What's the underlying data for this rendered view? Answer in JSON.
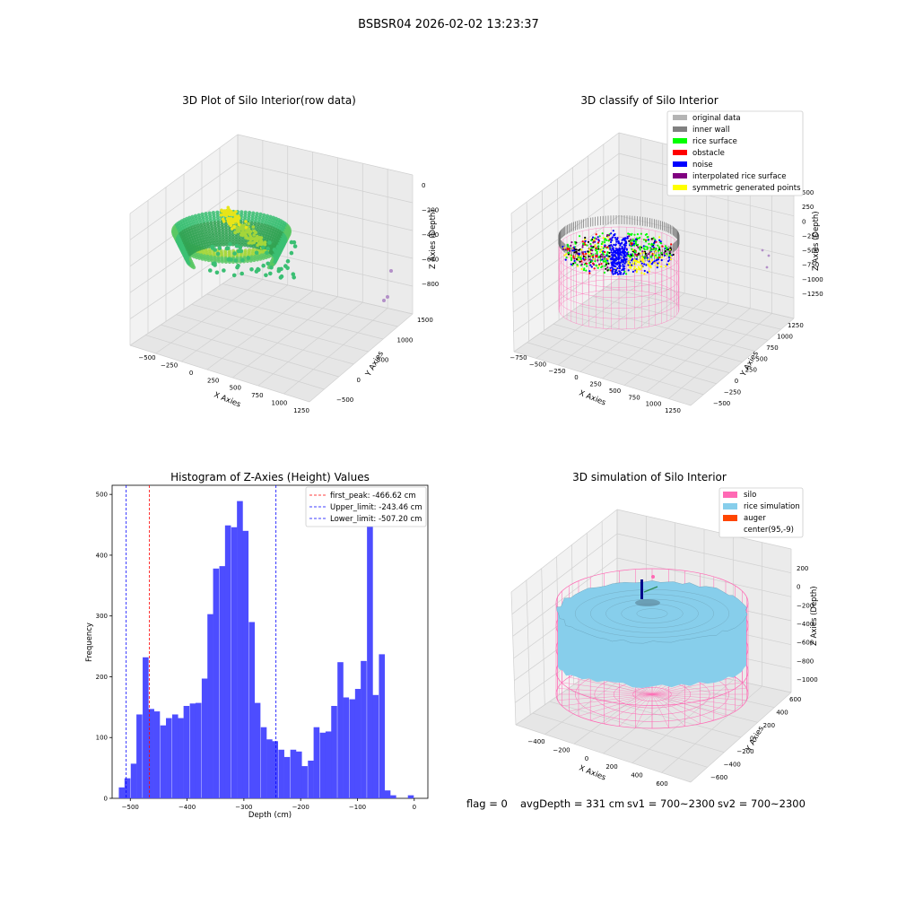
{
  "page_title": "BSBSR04 2026-02-02 13:23:37",
  "status": {
    "flag": "flag = 0",
    "avg_depth": "avgDepth = 331 cm",
    "sv1": "sv1 = 700~2300",
    "sv2": "sv2 = 700~2300"
  },
  "chart_data": [
    {
      "type": "scatter",
      "title": "3D Plot of Silo Interior(row data)",
      "xlabel": "X Axies",
      "ylabel": "Y Axies",
      "zlabel": "Z Axies (Depth)",
      "x_ticks": [
        "−500",
        "−250",
        "0",
        "250",
        "500",
        "750",
        "1000",
        "1250"
      ],
      "y_ticks": [
        "−500",
        "0",
        "500",
        "1000",
        "1500"
      ],
      "z_ticks": [
        "0",
        "−200",
        "−400",
        "−600",
        "−800"
      ],
      "colormap": [
        "#31a354",
        "#3bbf73",
        "#5ac864",
        "#a4d63a",
        "#e8e419"
      ]
    },
    {
      "type": "scatter",
      "title": "3D classify of Silo Interior",
      "xlabel": "X Axies",
      "ylabel": "Y Axies",
      "zlabel": "Z Axies (Depth)",
      "x_ticks": [
        "−750",
        "−500",
        "−250",
        "0",
        "250",
        "500",
        "750",
        "1000",
        "1250"
      ],
      "y_ticks": [
        "−500",
        "−250",
        "0",
        "250",
        "500",
        "750",
        "1000",
        "1250"
      ],
      "z_ticks": [
        "500",
        "250",
        "0",
        "−250",
        "−500",
        "−750",
        "−1000",
        "−1250"
      ],
      "legend": [
        {
          "label": "original data",
          "color": "#b4b4b4"
        },
        {
          "label": "inner wall",
          "color": "#808080"
        },
        {
          "label": "rice surface",
          "color": "#00ff00"
        },
        {
          "label": "obstacle",
          "color": "#ff0000"
        },
        {
          "label": "noise",
          "color": "#0000ff"
        },
        {
          "label": "interpolated rice surface",
          "color": "#800080"
        },
        {
          "label": "symmetric generated points",
          "color": "#ffff00"
        }
      ],
      "wall_color": "#ff69b4"
    },
    {
      "type": "bar",
      "title": "Histogram of Z-Axies (Height) Values",
      "xlabel": "Depth (cm)",
      "ylabel": "Frequency",
      "xlim": [
        -532,
        24
      ],
      "ylim": [
        0,
        515
      ],
      "x_ticks": [
        -500,
        -400,
        -300,
        -200,
        -100,
        0
      ],
      "x_tick_labels": [
        "−500",
        "−400",
        "−300",
        "−200",
        "−100",
        "0"
      ],
      "y_ticks": [
        0,
        100,
        200,
        300,
        400,
        500
      ],
      "bin_width": 10.4,
      "bins": [
        {
          "x": -515,
          "v": 18
        },
        {
          "x": -505,
          "v": 33
        },
        {
          "x": -494,
          "v": 57
        },
        {
          "x": -484,
          "v": 138
        },
        {
          "x": -473,
          "v": 232
        },
        {
          "x": -463,
          "v": 147
        },
        {
          "x": -453,
          "v": 143
        },
        {
          "x": -442,
          "v": 120
        },
        {
          "x": -432,
          "v": 132
        },
        {
          "x": -421,
          "v": 138
        },
        {
          "x": -411,
          "v": 132
        },
        {
          "x": -401,
          "v": 152
        },
        {
          "x": -390,
          "v": 156
        },
        {
          "x": -380,
          "v": 157
        },
        {
          "x": -369,
          "v": 197
        },
        {
          "x": -359,
          "v": 303
        },
        {
          "x": -349,
          "v": 378
        },
        {
          "x": -338,
          "v": 382
        },
        {
          "x": -328,
          "v": 449
        },
        {
          "x": -317,
          "v": 446
        },
        {
          "x": -307,
          "v": 489
        },
        {
          "x": -297,
          "v": 440
        },
        {
          "x": -286,
          "v": 290
        },
        {
          "x": -276,
          "v": 157
        },
        {
          "x": -265,
          "v": 117
        },
        {
          "x": -255,
          "v": 97
        },
        {
          "x": -245,
          "v": 94
        },
        {
          "x": -234,
          "v": 80
        },
        {
          "x": -224,
          "v": 68
        },
        {
          "x": -213,
          "v": 80
        },
        {
          "x": -203,
          "v": 77
        },
        {
          "x": -193,
          "v": 53
        },
        {
          "x": -182,
          "v": 62
        },
        {
          "x": -172,
          "v": 117
        },
        {
          "x": -161,
          "v": 108
        },
        {
          "x": -151,
          "v": 110
        },
        {
          "x": -141,
          "v": 152
        },
        {
          "x": -130,
          "v": 224
        },
        {
          "x": -120,
          "v": 166
        },
        {
          "x": -109,
          "v": 163
        },
        {
          "x": -99,
          "v": 180
        },
        {
          "x": -89,
          "v": 226
        },
        {
          "x": -78,
          "v": 455
        },
        {
          "x": -68,
          "v": 170
        },
        {
          "x": -57,
          "v": 237
        },
        {
          "x": -47,
          "v": 13
        },
        {
          "x": -37,
          "v": 5
        },
        {
          "x": -26,
          "v": 0
        },
        {
          "x": -16,
          "v": 0
        },
        {
          "x": -6,
          "v": 5
        }
      ],
      "bar_color": "#4d4dff",
      "vlines": [
        {
          "label": "first_peak: -466.62 cm",
          "x": -466.62,
          "color": "#ff0000"
        },
        {
          "label": "Upper_limit: -243.46 cm",
          "x": -243.46,
          "color": "#0000ff"
        },
        {
          "label": "Lower_limit: -507.20 cm",
          "x": -507.2,
          "color": "#0000ff"
        }
      ]
    },
    {
      "type": "surface",
      "title": "3D simulation of Silo Interior",
      "xlabel": "X Axies",
      "ylabel": "Y Axies",
      "zlabel": "Z Axies (Depth)",
      "x_ticks": [
        "−400",
        "−200",
        "0",
        "200",
        "400",
        "600"
      ],
      "y_ticks": [
        "600",
        "400",
        "200",
        "0",
        "−200",
        "−400",
        "−600"
      ],
      "z_ticks": [
        "200",
        "0",
        "−200",
        "−400",
        "−600",
        "−800",
        "−1000"
      ],
      "legend": [
        {
          "label": "silo",
          "color": "#ff69b4"
        },
        {
          "label": "rice simulation",
          "color": "#87ceeb"
        },
        {
          "label": "auger",
          "color": "#ff4500"
        },
        {
          "label": "center(95,-9)",
          "color": "#ffffff"
        }
      ]
    }
  ]
}
